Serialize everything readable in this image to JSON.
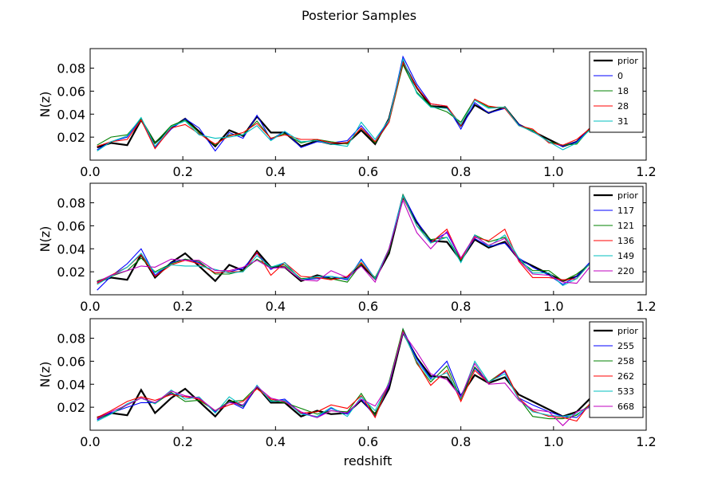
{
  "chart_data": {
    "type": "line",
    "title": "Posterior Samples",
    "xlabel": "redshift",
    "ylabel": "N(z)",
    "xlim": [
      0.0,
      1.2
    ],
    "ylim": [
      0.0,
      0.097
    ],
    "xticks": [
      "0.0",
      "0.2",
      "0.4",
      "0.6",
      "0.8",
      "1.0",
      "1.2"
    ],
    "yticks": [
      0.02,
      0.04,
      0.06,
      0.08
    ],
    "ytick_labels": [
      "0.02",
      "0.04",
      "0.06",
      "0.08"
    ],
    "grid": false,
    "legend_position": "top-right",
    "x": [
      0.015,
      0.045,
      0.08,
      0.11,
      0.14,
      0.175,
      0.205,
      0.235,
      0.27,
      0.3,
      0.33,
      0.36,
      0.39,
      0.42,
      0.455,
      0.49,
      0.52,
      0.555,
      0.585,
      0.615,
      0.645,
      0.675,
      0.705,
      0.735,
      0.77,
      0.8,
      0.83,
      0.86,
      0.895,
      0.925,
      0.955,
      0.99,
      1.02,
      1.05,
      1.08,
      1.11
    ],
    "panels": [
      {
        "series": [
          {
            "name": "prior",
            "color": "#000000",
            "width": 2.2,
            "values": [
              0.011,
              0.015,
              0.013,
              0.035,
              0.015,
              0.028,
              0.036,
              0.025,
              0.012,
              0.026,
              0.021,
              0.038,
              0.024,
              0.024,
              0.012,
              0.017,
              0.014,
              0.015,
              0.026,
              0.014,
              0.036,
              0.085,
              0.063,
              0.047,
              0.046,
              0.03,
              0.048,
              0.041,
              0.046,
              0.031,
              0.025,
              0.018,
              0.012,
              0.016,
              0.028,
              0.038
            ]
          },
          {
            "name": "0",
            "color": "#0000ff",
            "width": 1.1,
            "values": [
              0.009,
              0.016,
              0.02,
              0.036,
              0.011,
              0.027,
              0.036,
              0.028,
              0.008,
              0.024,
              0.019,
              0.039,
              0.018,
              0.025,
              0.011,
              0.016,
              0.015,
              0.017,
              0.03,
              0.016,
              0.035,
              0.09,
              0.066,
              0.049,
              0.047,
              0.027,
              0.05,
              0.041,
              0.045,
              0.031,
              0.025,
              0.016,
              0.012,
              0.016,
              0.028,
              0.038
            ]
          },
          {
            "name": "18",
            "color": "#008000",
            "width": 1.1,
            "values": [
              0.013,
              0.02,
              0.022,
              0.036,
              0.015,
              0.03,
              0.035,
              0.024,
              0.013,
              0.022,
              0.022,
              0.034,
              0.019,
              0.023,
              0.015,
              0.018,
              0.016,
              0.014,
              0.028,
              0.015,
              0.033,
              0.083,
              0.059,
              0.047,
              0.042,
              0.033,
              0.053,
              0.046,
              0.046,
              0.03,
              0.026,
              0.016,
              0.013,
              0.014,
              0.028,
              0.038
            ]
          },
          {
            "name": "28",
            "color": "#ff0000",
            "width": 1.1,
            "values": [
              0.012,
              0.016,
              0.018,
              0.035,
              0.01,
              0.028,
              0.031,
              0.023,
              0.014,
              0.021,
              0.024,
              0.032,
              0.019,
              0.022,
              0.018,
              0.018,
              0.015,
              0.015,
              0.028,
              0.016,
              0.033,
              0.085,
              0.063,
              0.049,
              0.047,
              0.03,
              0.053,
              0.047,
              0.045,
              0.03,
              0.027,
              0.015,
              0.013,
              0.018,
              0.028,
              0.038
            ]
          },
          {
            "name": "31",
            "color": "#00bfbf",
            "width": 1.1,
            "values": [
              0.008,
              0.016,
              0.021,
              0.037,
              0.012,
              0.029,
              0.034,
              0.022,
              0.019,
              0.02,
              0.022,
              0.03,
              0.017,
              0.025,
              0.016,
              0.017,
              0.014,
              0.012,
              0.033,
              0.018,
              0.035,
              0.088,
              0.058,
              0.046,
              0.045,
              0.031,
              0.052,
              0.045,
              0.046,
              0.03,
              0.025,
              0.016,
              0.009,
              0.015,
              0.027,
              0.038
            ]
          }
        ]
      },
      {
        "series": [
          {
            "name": "prior",
            "color": "#000000",
            "width": 2.2,
            "values": [
              0.011,
              0.015,
              0.013,
              0.035,
              0.015,
              0.028,
              0.036,
              0.025,
              0.012,
              0.026,
              0.021,
              0.038,
              0.024,
              0.024,
              0.012,
              0.017,
              0.014,
              0.015,
              0.026,
              0.014,
              0.036,
              0.085,
              0.063,
              0.047,
              0.046,
              0.03,
              0.048,
              0.041,
              0.046,
              0.031,
              0.025,
              0.018,
              0.012,
              0.016,
              0.028,
              0.038
            ]
          },
          {
            "name": "117",
            "color": "#0000ff",
            "width": 1.1,
            "values": [
              0.004,
              0.016,
              0.027,
              0.04,
              0.017,
              0.028,
              0.031,
              0.028,
              0.019,
              0.02,
              0.023,
              0.036,
              0.022,
              0.028,
              0.013,
              0.014,
              0.016,
              0.013,
              0.031,
              0.014,
              0.04,
              0.087,
              0.064,
              0.046,
              0.054,
              0.031,
              0.049,
              0.042,
              0.045,
              0.032,
              0.024,
              0.017,
              0.009,
              0.016,
              0.029,
              0.038
            ]
          },
          {
            "name": "121",
            "color": "#008000",
            "width": 1.1,
            "values": [
              0.012,
              0.016,
              0.021,
              0.032,
              0.02,
              0.027,
              0.031,
              0.029,
              0.018,
              0.018,
              0.021,
              0.031,
              0.024,
              0.026,
              0.014,
              0.015,
              0.014,
              0.011,
              0.027,
              0.015,
              0.038,
              0.087,
              0.06,
              0.048,
              0.05,
              0.03,
              0.052,
              0.046,
              0.05,
              0.03,
              0.021,
              0.021,
              0.012,
              0.018,
              0.027,
              0.038
            ]
          },
          {
            "name": "136",
            "color": "#ff0000",
            "width": 1.1,
            "values": [
              0.01,
              0.017,
              0.024,
              0.035,
              0.016,
              0.026,
              0.03,
              0.027,
              0.019,
              0.02,
              0.02,
              0.037,
              0.017,
              0.028,
              0.016,
              0.015,
              0.013,
              0.016,
              0.028,
              0.014,
              0.04,
              0.085,
              0.06,
              0.045,
              0.057,
              0.031,
              0.05,
              0.047,
              0.057,
              0.029,
              0.015,
              0.015,
              0.013,
              0.014,
              0.028,
              0.038
            ]
          },
          {
            "name": "149",
            "color": "#00bfbf",
            "width": 1.1,
            "values": [
              0.009,
              0.016,
              0.024,
              0.036,
              0.019,
              0.026,
              0.025,
              0.025,
              0.022,
              0.019,
              0.02,
              0.034,
              0.024,
              0.028,
              0.013,
              0.016,
              0.016,
              0.014,
              0.03,
              0.014,
              0.04,
              0.086,
              0.06,
              0.045,
              0.05,
              0.028,
              0.052,
              0.042,
              0.052,
              0.032,
              0.019,
              0.019,
              0.008,
              0.014,
              0.028,
              0.038
            ]
          },
          {
            "name": "220",
            "color": "#bf00bf",
            "width": 1.1,
            "values": [
              0.011,
              0.017,
              0.021,
              0.025,
              0.024,
              0.031,
              0.03,
              0.03,
              0.021,
              0.021,
              0.024,
              0.03,
              0.023,
              0.024,
              0.013,
              0.012,
              0.021,
              0.015,
              0.025,
              0.011,
              0.04,
              0.082,
              0.054,
              0.04,
              0.055,
              0.032,
              0.051,
              0.043,
              0.049,
              0.03,
              0.018,
              0.017,
              0.011,
              0.01,
              0.025,
              0.038
            ]
          }
        ]
      },
      {
        "series": [
          {
            "name": "prior",
            "color": "#000000",
            "width": 2.2,
            "values": [
              0.011,
              0.015,
              0.013,
              0.035,
              0.015,
              0.028,
              0.036,
              0.025,
              0.012,
              0.026,
              0.021,
              0.038,
              0.024,
              0.024,
              0.012,
              0.017,
              0.014,
              0.015,
              0.026,
              0.014,
              0.036,
              0.085,
              0.063,
              0.047,
              0.046,
              0.03,
              0.048,
              0.041,
              0.046,
              0.031,
              0.025,
              0.018,
              0.012,
              0.016,
              0.028,
              0.038
            ]
          },
          {
            "name": "255",
            "color": "#0000ff",
            "width": 1.1,
            "values": [
              0.009,
              0.015,
              0.02,
              0.024,
              0.024,
              0.032,
              0.029,
              0.028,
              0.016,
              0.025,
              0.019,
              0.039,
              0.025,
              0.027,
              0.015,
              0.011,
              0.019,
              0.014,
              0.027,
              0.012,
              0.039,
              0.088,
              0.062,
              0.045,
              0.06,
              0.03,
              0.054,
              0.041,
              0.051,
              0.028,
              0.022,
              0.016,
              0.012,
              0.011,
              0.022,
              0.038
            ]
          },
          {
            "name": "258",
            "color": "#008000",
            "width": 1.1,
            "values": [
              0.01,
              0.014,
              0.022,
              0.028,
              0.023,
              0.033,
              0.025,
              0.026,
              0.017,
              0.025,
              0.026,
              0.038,
              0.026,
              0.024,
              0.019,
              0.014,
              0.017,
              0.016,
              0.032,
              0.013,
              0.042,
              0.088,
              0.058,
              0.042,
              0.056,
              0.027,
              0.055,
              0.042,
              0.052,
              0.028,
              0.012,
              0.01,
              0.01,
              0.013,
              0.023,
              0.038
            ]
          },
          {
            "name": "262",
            "color": "#ff0000",
            "width": 1.1,
            "values": [
              0.011,
              0.017,
              0.025,
              0.029,
              0.026,
              0.031,
              0.029,
              0.027,
              0.017,
              0.022,
              0.025,
              0.036,
              0.027,
              0.025,
              0.015,
              0.016,
              0.022,
              0.019,
              0.03,
              0.011,
              0.041,
              0.086,
              0.059,
              0.039,
              0.052,
              0.025,
              0.052,
              0.041,
              0.052,
              0.028,
              0.017,
              0.012,
              0.011,
              0.008,
              0.024,
              0.038
            ]
          },
          {
            "name": "533",
            "color": "#00bfbf",
            "width": 1.1,
            "values": [
              0.008,
              0.014,
              0.023,
              0.028,
              0.023,
              0.035,
              0.027,
              0.029,
              0.015,
              0.029,
              0.021,
              0.039,
              0.025,
              0.026,
              0.014,
              0.012,
              0.02,
              0.012,
              0.029,
              0.017,
              0.041,
              0.085,
              0.06,
              0.044,
              0.05,
              0.028,
              0.06,
              0.042,
              0.049,
              0.027,
              0.016,
              0.013,
              0.012,
              0.014,
              0.021,
              0.038
            ]
          },
          {
            "name": "668",
            "color": "#bf00bf",
            "width": 1.1,
            "values": [
              0.01,
              0.016,
              0.022,
              0.028,
              0.024,
              0.034,
              0.03,
              0.028,
              0.017,
              0.024,
              0.022,
              0.038,
              0.028,
              0.025,
              0.016,
              0.011,
              0.017,
              0.015,
              0.027,
              0.021,
              0.04,
              0.085,
              0.068,
              0.049,
              0.044,
              0.029,
              0.058,
              0.04,
              0.041,
              0.026,
              0.018,
              0.016,
              0.004,
              0.016,
              0.02,
              0.038
            ]
          }
        ]
      }
    ]
  }
}
